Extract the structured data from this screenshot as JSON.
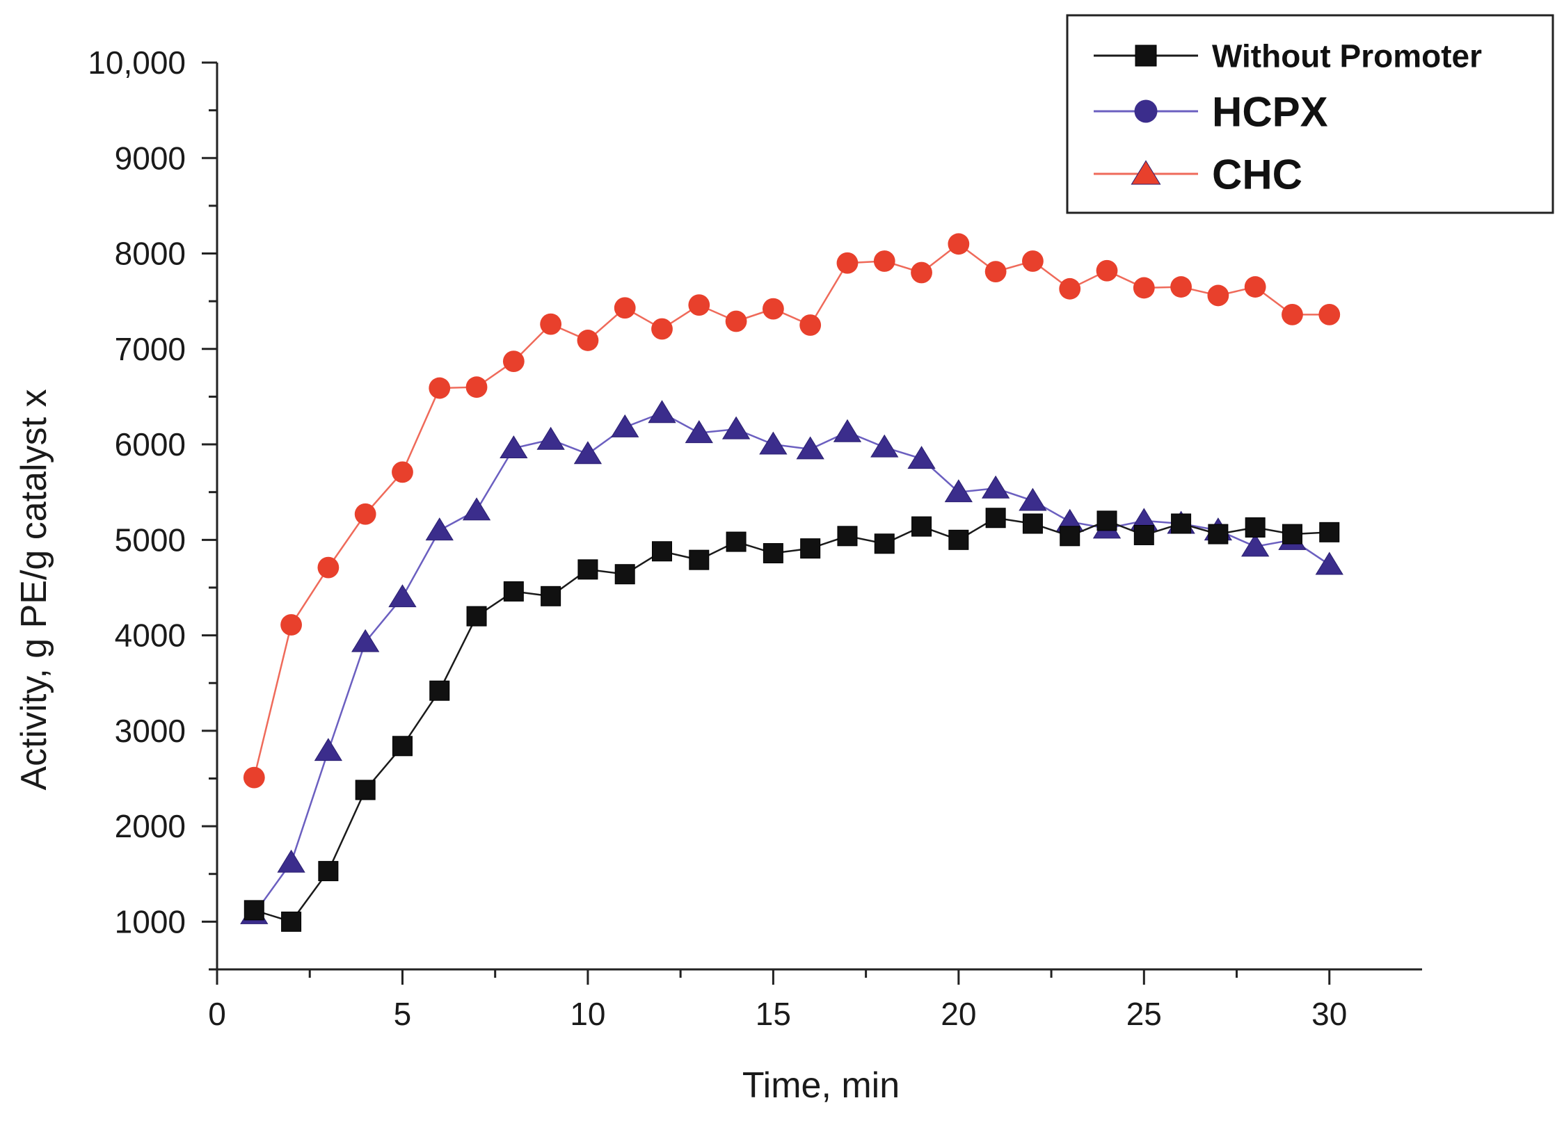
{
  "chart_data": {
    "type": "line",
    "title": "",
    "xlabel": "Time, min",
    "ylabel": "Activity, g PE/g catalyst x",
    "xlim": [
      0,
      32.5
    ],
    "ylim": [
      500,
      10000
    ],
    "x_ticks": [
      0,
      5,
      10,
      15,
      20,
      25,
      30
    ],
    "x_tick_labels": [
      "0",
      "5",
      "10",
      "15",
      "20",
      "25",
      "30"
    ],
    "y_ticks": [
      1000,
      2000,
      3000,
      4000,
      5000,
      6000,
      7000,
      8000,
      9000,
      10000
    ],
    "y_tick_labels": [
      "1000",
      "2000",
      "3000",
      "4000",
      "5000",
      "6000",
      "7000",
      "8000",
      "9000",
      "10,000"
    ],
    "grid": false,
    "legend_position": "top-right",
    "x": [
      1,
      2,
      3,
      4,
      5,
      6,
      7,
      8,
      9,
      10,
      11,
      12,
      13,
      14,
      15,
      16,
      17,
      18,
      19,
      20,
      21,
      22,
      23,
      24,
      25,
      26,
      27,
      28,
      29,
      30
    ],
    "series": [
      {
        "name": "Without Promoter",
        "legend_marker": "square",
        "marker": "square",
        "line_color": "#1a1a1a",
        "marker_color": "#111111",
        "values": [
          1120,
          1000,
          1530,
          2380,
          2840,
          3420,
          4200,
          4460,
          4410,
          4690,
          4640,
          4880,
          4790,
          4980,
          4860,
          4910,
          5040,
          4960,
          5140,
          5000,
          5230,
          5170,
          5040,
          5200,
          5050,
          5170,
          5060,
          5130,
          5060,
          5080
        ]
      },
      {
        "name": "HCPX",
        "legend_marker": "circle",
        "marker": "triangle",
        "line_color": "#6b5fc0",
        "marker_color": "#3b2d8c",
        "values": [
          1080,
          1620,
          2790,
          3930,
          4400,
          5100,
          5310,
          5960,
          6050,
          5900,
          6180,
          6330,
          6120,
          6160,
          6000,
          5950,
          6130,
          5970,
          5850,
          5500,
          5540,
          5410,
          5190,
          5120,
          5200,
          5170,
          5100,
          4930,
          5000,
          4740
        ]
      },
      {
        "name": "CHC",
        "legend_marker": "triangle",
        "marker": "circle",
        "line_color": "#ef6a5a",
        "marker_color": "#e8402c",
        "values": [
          2510,
          4110,
          4710,
          5270,
          5710,
          6590,
          6600,
          6870,
          7260,
          7090,
          7430,
          7210,
          7460,
          7290,
          7420,
          7250,
          7900,
          7920,
          7800,
          8100,
          7810,
          7920,
          7630,
          7820,
          7640,
          7650,
          7560,
          7650,
          7360,
          7360
        ]
      }
    ]
  }
}
